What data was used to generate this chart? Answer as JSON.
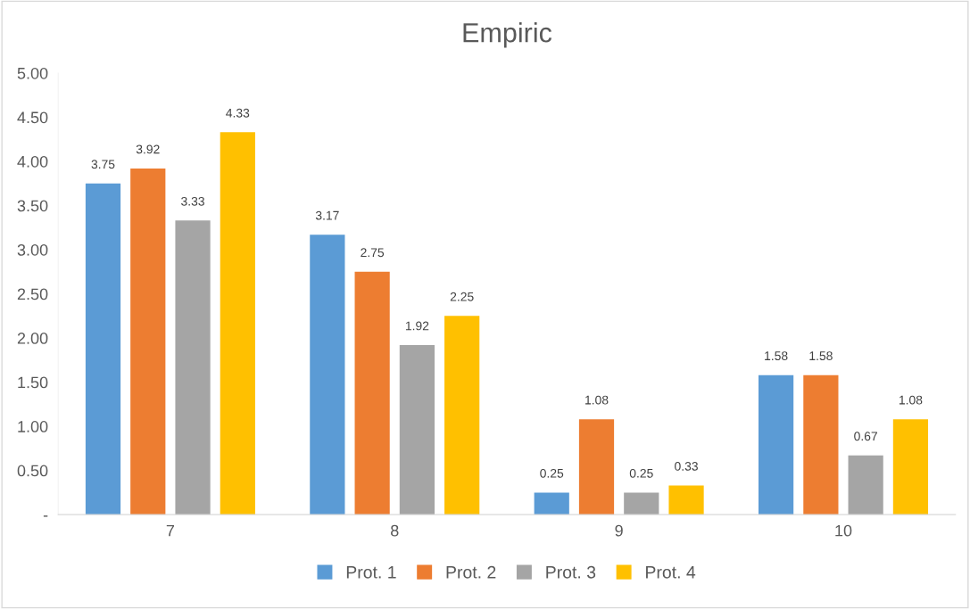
{
  "chart_data": {
    "type": "bar",
    "title": "Empiric",
    "categories": [
      "7",
      "8",
      "9",
      "10"
    ],
    "series": [
      {
        "name": "Prot. 1",
        "color": "#5b9bd5",
        "values": [
          3.75,
          3.17,
          0.25,
          1.58
        ],
        "value_labels": [
          "3.75",
          "3.17",
          "0.25",
          "1.58"
        ]
      },
      {
        "name": "Prot. 2",
        "color": "#ed7d31",
        "values": [
          3.92,
          2.75,
          1.08,
          1.58
        ],
        "value_labels": [
          "3.92",
          "2.75",
          "1.08",
          "1.58"
        ]
      },
      {
        "name": "Prot. 3",
        "color": "#a5a5a5",
        "values": [
          3.33,
          1.92,
          0.25,
          0.67
        ],
        "value_labels": [
          "3.33",
          "1.92",
          "0.25",
          "0.67"
        ]
      },
      {
        "name": "Prot. 4",
        "color": "#ffc000",
        "values": [
          4.33,
          2.25,
          0.33,
          1.08
        ],
        "value_labels": [
          "4.33",
          "2.25",
          "0.33",
          "1.08"
        ]
      }
    ],
    "ylim": [
      0,
      5
    ],
    "yticks": [
      {
        "value": 0,
        "label": "-"
      },
      {
        "value": 0.5,
        "label": "0.50"
      },
      {
        "value": 1,
        "label": "1.00"
      },
      {
        "value": 1.5,
        "label": "1.50"
      },
      {
        "value": 2,
        "label": "2.00"
      },
      {
        "value": 2.5,
        "label": "2.50"
      },
      {
        "value": 3,
        "label": "3.00"
      },
      {
        "value": 3.5,
        "label": "3.50"
      },
      {
        "value": 4,
        "label": "4.00"
      },
      {
        "value": 4.5,
        "label": "4.50"
      },
      {
        "value": 5,
        "label": "5.00"
      }
    ],
    "grid": false,
    "legend": "bottom"
  }
}
